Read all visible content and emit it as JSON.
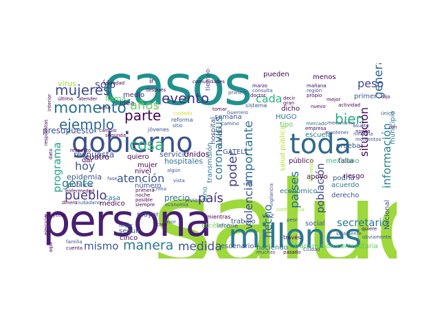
{
  "words": [
    {
      "text": "salud",
      "color": "#9dd93b"
    },
    {
      "text": "casos",
      "color": "#21908d"
    },
    {
      "text": "persona",
      "color": "#481f70"
    },
    {
      "text": "millones",
      "color": "#2a788e"
    },
    {
      "text": "gobierno",
      "color": "#3b528b"
    },
    {
      "text": "toda",
      "color": "#31688e"
    },
    {
      "text": "mujeres",
      "color": "#3e4a89"
    },
    {
      "text": "momento",
      "color": "#2c728e"
    },
    {
      "text": "ejemplo",
      "color": "#31688e"
    },
    {
      "text": "cosa",
      "color": "#35b779"
    },
    {
      "text": "parte",
      "color": "#440154"
    },
    {
      "text": "evento",
      "color": "#46337f"
    },
    {
      "text": "años",
      "color": "#6ccd5a"
    },
    {
      "text": "bien",
      "color": "#26ad81"
    },
    {
      "text": "cada",
      "color": "#2db27d"
    },
    {
      "text": "peso",
      "color": "#3f4889"
    },
    {
      "text": "general",
      "color": "#31688e"
    },
    {
      "text": "situación",
      "color": "#440154"
    },
    {
      "text": "información",
      "color": "#26828e"
    },
    {
      "text": "importante",
      "color": "#2c728e"
    },
    {
      "text": "violencia",
      "color": "#3b528b"
    },
    {
      "text": "poder",
      "color": "#414487"
    },
    {
      "text": "país",
      "color": "#46327e"
    },
    {
      "text": "atención",
      "color": "#3b528b"
    },
    {
      "text": "hoy",
      "color": "#38598c"
    },
    {
      "text": "programa",
      "color": "#20a386"
    },
    {
      "text": "pueblo",
      "color": "#443a83"
    },
    {
      "text": "gente",
      "color": "#27808e"
    },
    {
      "text": "mismo",
      "color": "#3b528b"
    },
    {
      "text": "manera",
      "color": "#2a788e"
    },
    {
      "text": "medida",
      "color": "#3b528b"
    },
    {
      "text": "secretario",
      "color": "#2a788e"
    },
    {
      "text": "población",
      "color": "#3f4788"
    },
    {
      "text": "países",
      "color": "#2c728e"
    },
    {
      "text": "hecho",
      "color": "#31688e"
    },
    {
      "text": "coronavirus",
      "color": "#2a788e"
    },
    {
      "text": "sólo",
      "color": "#3e4a89"
    },
    {
      "text": "virus",
      "color": "#9fda3a"
    },
    {
      "text": "llama",
      "color": "#5ec962"
    },
    {
      "text": "medio",
      "color": "#482475"
    },
    {
      "text": "idea",
      "color": "#482475"
    },
    {
      "text": "presupuesto",
      "color": "#3b528b"
    },
    {
      "text": "respuesta",
      "color": "#3b528b"
    },
    {
      "text": "dar",
      "color": "#440154"
    },
    {
      "text": "cuatro",
      "color": "#440154"
    },
    {
      "text": "epidemia",
      "color": "#3b528b"
    },
    {
      "text": "pública",
      "color": "#3b528b"
    },
    {
      "text": "médico",
      "color": "#440154"
    },
    {
      "text": "casa",
      "color": "#2c728e"
    },
    {
      "text": "precio",
      "color": "#31688e"
    },
    {
      "text": "mayor",
      "color": "#3b528b"
    },
    {
      "text": "número",
      "color": "#3b528b"
    },
    {
      "text": "mujer",
      "color": "#440154"
    },
    {
      "text": "nivel",
      "color": "#440154"
    },
    {
      "text": "servicio",
      "color": "#3b528b"
    },
    {
      "text": "Unidos",
      "color": "#440154"
    },
    {
      "text": "hospitales",
      "color": "#2c728e"
    },
    {
      "text": "quiero",
      "color": "#440154"
    },
    {
      "text": "transmisión",
      "color": "#2a788e"
    },
    {
      "text": "sino",
      "color": "#21908d"
    },
    {
      "text": "mundo",
      "color": "#3b528b"
    },
    {
      "text": "hospital",
      "color": "#3b528b"
    },
    {
      "text": "GATELL",
      "color": "#3b528b"
    },
    {
      "text": "semana",
      "color": "#3b528b"
    },
    {
      "text": "HUGO",
      "color": "#2a788e"
    },
    {
      "text": "dicho",
      "color": "#440154"
    },
    {
      "text": "escuela",
      "color": "#2c728e"
    },
    {
      "text": "público",
      "color": "#440154"
    },
    {
      "text": "apoyo",
      "color": "#440154"
    },
    {
      "text": "prueba",
      "color": "#3b528b"
    },
    {
      "text": "falta",
      "color": "#440154"
    },
    {
      "text": "mexicano",
      "color": "#35b779"
    },
    {
      "text": "acuerdo",
      "color": "#2c728e"
    },
    {
      "text": "derecho",
      "color": "#3b528b"
    },
    {
      "text": "riesgo",
      "color": "#440154"
    },
    {
      "text": "podría",
      "color": "#3b528b"
    },
    {
      "text": "social",
      "color": "#3b528b"
    },
    {
      "text": "trabajo",
      "color": "#3b528b"
    },
    {
      "text": "escenario",
      "color": "#3b528b"
    },
    {
      "text": "haciendo",
      "color": "#2c728e"
    },
    {
      "text": "transmisión comunitaria",
      "color": "#5ec962"
    },
    {
      "text": "seguir",
      "color": "#3b528b"
    },
    {
      "text": "cinco",
      "color": "#440154"
    },
    {
      "text": "etcétera",
      "color": "#7ad151"
    },
    {
      "text": "pueden",
      "color": "#440154"
    },
    {
      "text": "primer",
      "color": "#3b528b"
    },
    {
      "text": "municipio",
      "color": "#2a788e"
    },
    {
      "text": "Nacional",
      "color": "#3b528b"
    },
    {
      "text": "vez",
      "color": "#3b528b"
    },
    {
      "text": "ir",
      "color": "#440154"
    },
    {
      "text": "menos",
      "color": "#440154"
    },
    {
      "text": "salud pública",
      "color": "#b5de2b"
    },
    {
      "text": "económico",
      "color": "#2c728e"
    },
    {
      "text": "tipo",
      "color": "#5ec962"
    },
    {
      "text": "tiempo",
      "color": "#3b528b"
    },
    {
      "text": "informe",
      "color": "#3b528b"
    },
    {
      "text": "través",
      "color": "#440154"
    },
    {
      "text": "mientras",
      "color": "#440154"
    },
    {
      "text": "vivienda",
      "color": "#3b528b"
    },
    {
      "text": "sistema",
      "color": "#3b528b"
    },
    {
      "text": "conferencia",
      "color": "#a0da39"
    },
    {
      "text": "Ciudad",
      "color": "#3b528b"
    },
    {
      "text": "cambio",
      "color": "#440154"
    },
    {
      "text": "jóvenes",
      "color": "#3b528b"
    },
    {
      "text": "reforma",
      "color": "#3b528b"
    },
    {
      "text": "sitio",
      "color": "#3b528b"
    },
    {
      "text": "cuidado",
      "color": "#d2e21b"
    },
    {
      "text": "camino",
      "color": "#3b528b"
    },
    {
      "text": "Guerrero",
      "color": "#3b528b"
    },
    {
      "text": "comunidades",
      "color": "#440154"
    },
    {
      "text": "sociedad",
      "color": "#440154"
    },
    {
      "text": "después",
      "color": "#440154"
    },
    {
      "text": "nuevo",
      "color": "#440154"
    },
    {
      "text": "mercado",
      "color": "#2c728e"
    },
    {
      "text": "empresa",
      "color": "#440154"
    },
    {
      "text": "mantener",
      "color": "#3b528b"
    },
    {
      "text": "nunca",
      "color": "#440154"
    },
    {
      "text": "asunto",
      "color": "#3b528b"
    },
    {
      "text": "proyecto",
      "color": "#440154"
    },
    {
      "text": "enfermedad",
      "color": "#440154"
    },
    {
      "text": "dinero",
      "color": "#440154"
    },
    {
      "text": "ciudadano",
      "color": "#3b528b"
    },
    {
      "text": "respecto",
      "color": "#440154"
    },
    {
      "text": "familia",
      "color": "#3b528b"
    },
    {
      "text": "cuenta",
      "color": "#440154"
    },
    {
      "text": "siempre",
      "color": "#440154"
    },
    {
      "text": "economía",
      "color": "#3b528b"
    },
    {
      "text": "China",
      "color": "#3b528b"
    },
    {
      "text": "posible",
      "color": "#440154"
    },
    {
      "text": "noche",
      "color": "#440154"
    },
    {
      "text": "primera",
      "color": "#440154"
    },
    {
      "text": "llegar",
      "color": "#3b528b"
    },
    {
      "text": "favor",
      "color": "#3b528b"
    },
    {
      "text": "muchas",
      "color": "#3b528b"
    },
    {
      "text": "pasado",
      "color": "#440154"
    },
    {
      "text": "solamente",
      "color": "#3b528b"
    },
    {
      "text": "obviamente",
      "color": "#3b528b"
    },
    {
      "text": "quiere",
      "color": "#440154"
    },
    {
      "text": "región",
      "color": "#3b528b"
    },
    {
      "text": "propio",
      "color": "#440154"
    },
    {
      "text": "mejor",
      "color": "#440154"
    },
    {
      "text": "doctor",
      "color": "#440154"
    },
    {
      "text": "consulta",
      "color": "#3b528b"
    },
    {
      "text": "mañana",
      "color": "#440154"
    },
    {
      "text": "marzo",
      "color": "#440154"
    },
    {
      "text": "primero",
      "color": "#3b528b"
    },
    {
      "text": "decir",
      "color": "#440154"
    },
    {
      "text": "gran",
      "color": "#440154"
    },
    {
      "text": "última",
      "color": "#440154"
    },
    {
      "text": "atender",
      "color": "#440154"
    },
    {
      "text": "ocho",
      "color": "#440154"
    },
    {
      "text": "segunda",
      "color": "#440154"
    },
    {
      "text": "algún",
      "color": "#3b528b"
    },
    {
      "text": "creo",
      "color": "#440154"
    },
    {
      "text": "vista",
      "color": "#3b528b"
    },
    {
      "text": "fase",
      "color": "#3b528b"
    },
    {
      "text": "tomar",
      "color": "#440154"
    },
    {
      "text": "mecanismo",
      "color": "#3b528b"
    },
    {
      "text": "momentos",
      "color": "#3b528b"
    },
    {
      "text": "ninguna",
      "color": "#3b528b"
    },
    {
      "text": "Bienestar",
      "color": "#a0da39"
    },
    {
      "text": "dijo",
      "color": "#440154"
    },
    {
      "text": "zona",
      "color": "#440154"
    },
    {
      "text": "vigilancia",
      "color": "#3b528b"
    },
    {
      "text": "peor",
      "color": "#3b528b"
    },
    {
      "text": "interior",
      "color": "#440154"
    },
    {
      "text": "respuestas",
      "color": "#440154"
    },
    {
      "text": "dato",
      "color": "#440154"
    },
    {
      "text": "ejercicio",
      "color": "#440154"
    },
    {
      "text": "aquí",
      "color": "#440154"
    },
    {
      "text": "único",
      "color": "#3b528b"
    },
    {
      "text": "actividad",
      "color": "#440154"
    }
  ]
}
